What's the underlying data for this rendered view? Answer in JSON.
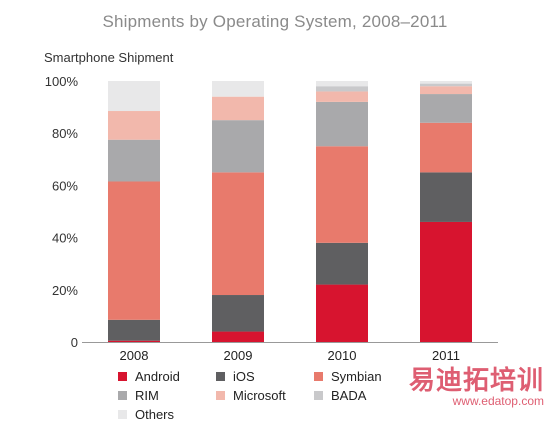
{
  "chart_data": {
    "type": "bar",
    "stacked": true,
    "title": "Shipments by Operating System, 2008–2011",
    "ylabel": "Smartphone Shipment",
    "xlabel": "",
    "ylim": [
      0,
      100
    ],
    "yticks": [
      "0",
      "20%",
      "40%",
      "60%",
      "80%",
      "100%"
    ],
    "ytick_values": [
      0,
      20,
      40,
      60,
      80,
      100
    ],
    "grid": false,
    "legend_position": "bottom",
    "categories": [
      "2008",
      "2009",
      "2010",
      "2011"
    ],
    "series": [
      {
        "name": "Android",
        "color": "#d7142f",
        "values": [
          0.5,
          4,
          22,
          46
        ]
      },
      {
        "name": "iOS",
        "color": "#5f5f61",
        "values": [
          8,
          14,
          16,
          19
        ]
      },
      {
        "name": "Symbian",
        "color": "#e87a6c",
        "values": [
          53,
          47,
          37,
          19
        ]
      },
      {
        "name": "RIM",
        "color": "#a9a9ab",
        "values": [
          16,
          20,
          17,
          11
        ]
      },
      {
        "name": "Microsoft",
        "color": "#f2b8ac",
        "values": [
          11,
          9,
          4,
          3
        ]
      },
      {
        "name": "BADA",
        "color": "#c9c9cb",
        "values": [
          0,
          0,
          2,
          1
        ]
      },
      {
        "name": "Others",
        "color": "#e8e8e9",
        "values": [
          11.5,
          6,
          2,
          1
        ]
      }
    ]
  },
  "watermark": {
    "logo": "易迪拓培训",
    "url": "www.edatop.com"
  }
}
